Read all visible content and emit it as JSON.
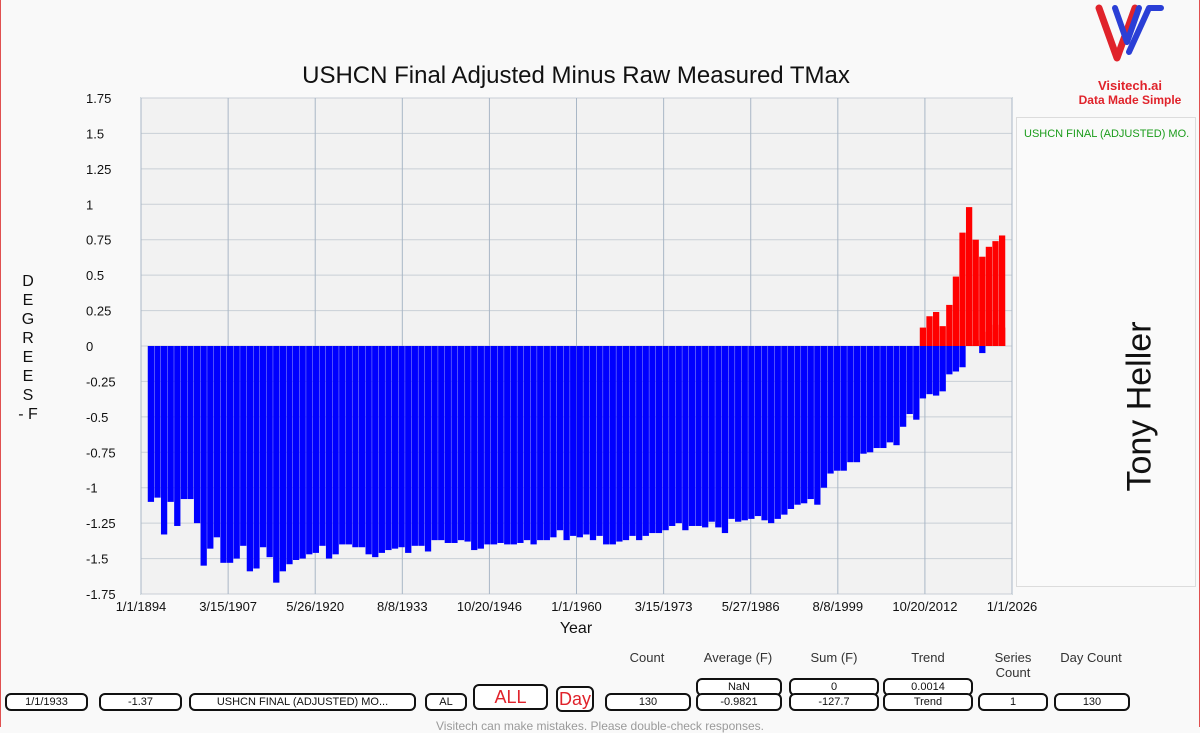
{
  "chart_data": {
    "type": "bar",
    "title": "USHCN Final Adjusted Minus Raw Measured TMax",
    "xlabel": "Year",
    "ylabel": "DEGREES - F",
    "ylim": [
      -1.75,
      1.75
    ],
    "yticks": [
      "1.75",
      "1.5",
      "1.25",
      "1",
      "0.75",
      "0.5",
      "0.25",
      "0",
      "-0.25",
      "-0.5",
      "-0.75",
      "-1",
      "-1.25",
      "-1.5",
      "-1.75"
    ],
    "xlim": [
      "1/1/1894",
      "1/1/2026"
    ],
    "xticks": [
      "1/1/1894",
      "3/15/1907",
      "5/26/1920",
      "8/8/1933",
      "10/20/1946",
      "1/1/1960",
      "3/15/1973",
      "5/27/1986",
      "8/8/1999",
      "10/20/2012",
      "1/1/2026"
    ],
    "grid": true,
    "legend_position": "right",
    "positive_color": "#ff0000",
    "negative_color": "#0000ff",
    "series": [
      {
        "name": "USHCN FINAL (ADJUSTED) MO.",
        "x_start_year": 1895,
        "x_end_year": 2024,
        "values": [
          -1.1,
          -1.07,
          -1.33,
          -1.1,
          -1.27,
          -1.08,
          -1.08,
          -1.25,
          -1.55,
          -1.43,
          -1.35,
          -1.53,
          -1.53,
          -1.5,
          -1.41,
          -1.59,
          -1.57,
          -1.42,
          -1.49,
          -1.67,
          -1.59,
          -1.54,
          -1.51,
          -1.5,
          -1.47,
          -1.46,
          -1.41,
          -1.5,
          -1.47,
          -1.4,
          -1.4,
          -1.42,
          -1.42,
          -1.47,
          -1.49,
          -1.46,
          -1.44,
          -1.43,
          -1.42,
          -1.46,
          -1.41,
          -1.41,
          -1.45,
          -1.37,
          -1.37,
          -1.39,
          -1.39,
          -1.37,
          -1.38,
          -1.44,
          -1.43,
          -1.4,
          -1.4,
          -1.39,
          -1.4,
          -1.4,
          -1.39,
          -1.37,
          -1.4,
          -1.37,
          -1.37,
          -1.35,
          -1.3,
          -1.37,
          -1.34,
          -1.35,
          -1.33,
          -1.37,
          -1.34,
          -1.4,
          -1.4,
          -1.38,
          -1.37,
          -1.34,
          -1.37,
          -1.34,
          -1.32,
          -1.32,
          -1.3,
          -1.27,
          -1.25,
          -1.3,
          -1.27,
          -1.27,
          -1.28,
          -1.24,
          -1.28,
          -1.32,
          -1.22,
          -1.24,
          -1.23,
          -1.22,
          -1.2,
          -1.23,
          -1.25,
          -1.22,
          -1.19,
          -1.15,
          -1.12,
          -1.11,
          -1.08,
          -1.12,
          -1.0,
          -0.9,
          -0.88,
          -0.88,
          -0.82,
          -0.82,
          -0.76,
          -0.75,
          -0.72,
          -0.72,
          -0.68,
          -0.7,
          -0.57,
          -0.48,
          -0.52,
          -0.37,
          -0.34,
          -0.35,
          -0.32,
          -0.2,
          -0.18,
          -0.15,
          0.01,
          0.04,
          -0.05,
          0.1,
          0.15,
          0.13
        ]
      },
      {
        "name": "",
        "x_start_year": 2012,
        "x_end_year": 2024,
        "values": [
          0.13,
          0.21,
          0.24,
          0.14,
          0.29,
          0.49,
          0.8,
          0.98,
          0.75,
          0.63,
          0.7,
          0.74,
          0.78
        ]
      }
    ]
  },
  "logo": {
    "name": "Visitech.ai",
    "tagline": "Data Made Simple"
  },
  "legend": {
    "entry": "USHCN FINAL (ADJUSTED) MO."
  },
  "author": "Tony Heller",
  "controls": {
    "date_value": "1/1/1933",
    "value_value": "-1.37",
    "series_select": "USHCN FINAL (ADJUSTED) MO...",
    "state_select": "AL",
    "all_button": "ALL",
    "day_button": "Day"
  },
  "stats": {
    "count_header": "Count",
    "count_value": "130",
    "average_header": "Average (F)",
    "average_top": "NaN",
    "average_value": "-0.9821",
    "sum_header": "Sum (F)",
    "sum_top": "0",
    "sum_value": "-127.7",
    "trend_header": "Trend",
    "trend_top": "0.0014",
    "trend_value": "Trend",
    "series_count_header": "Series Count",
    "series_count_value": "1",
    "day_count_header": "Day Count",
    "day_count_value": "130"
  },
  "disclaimer": "Visitech can make mistakes. Please double-check responses."
}
